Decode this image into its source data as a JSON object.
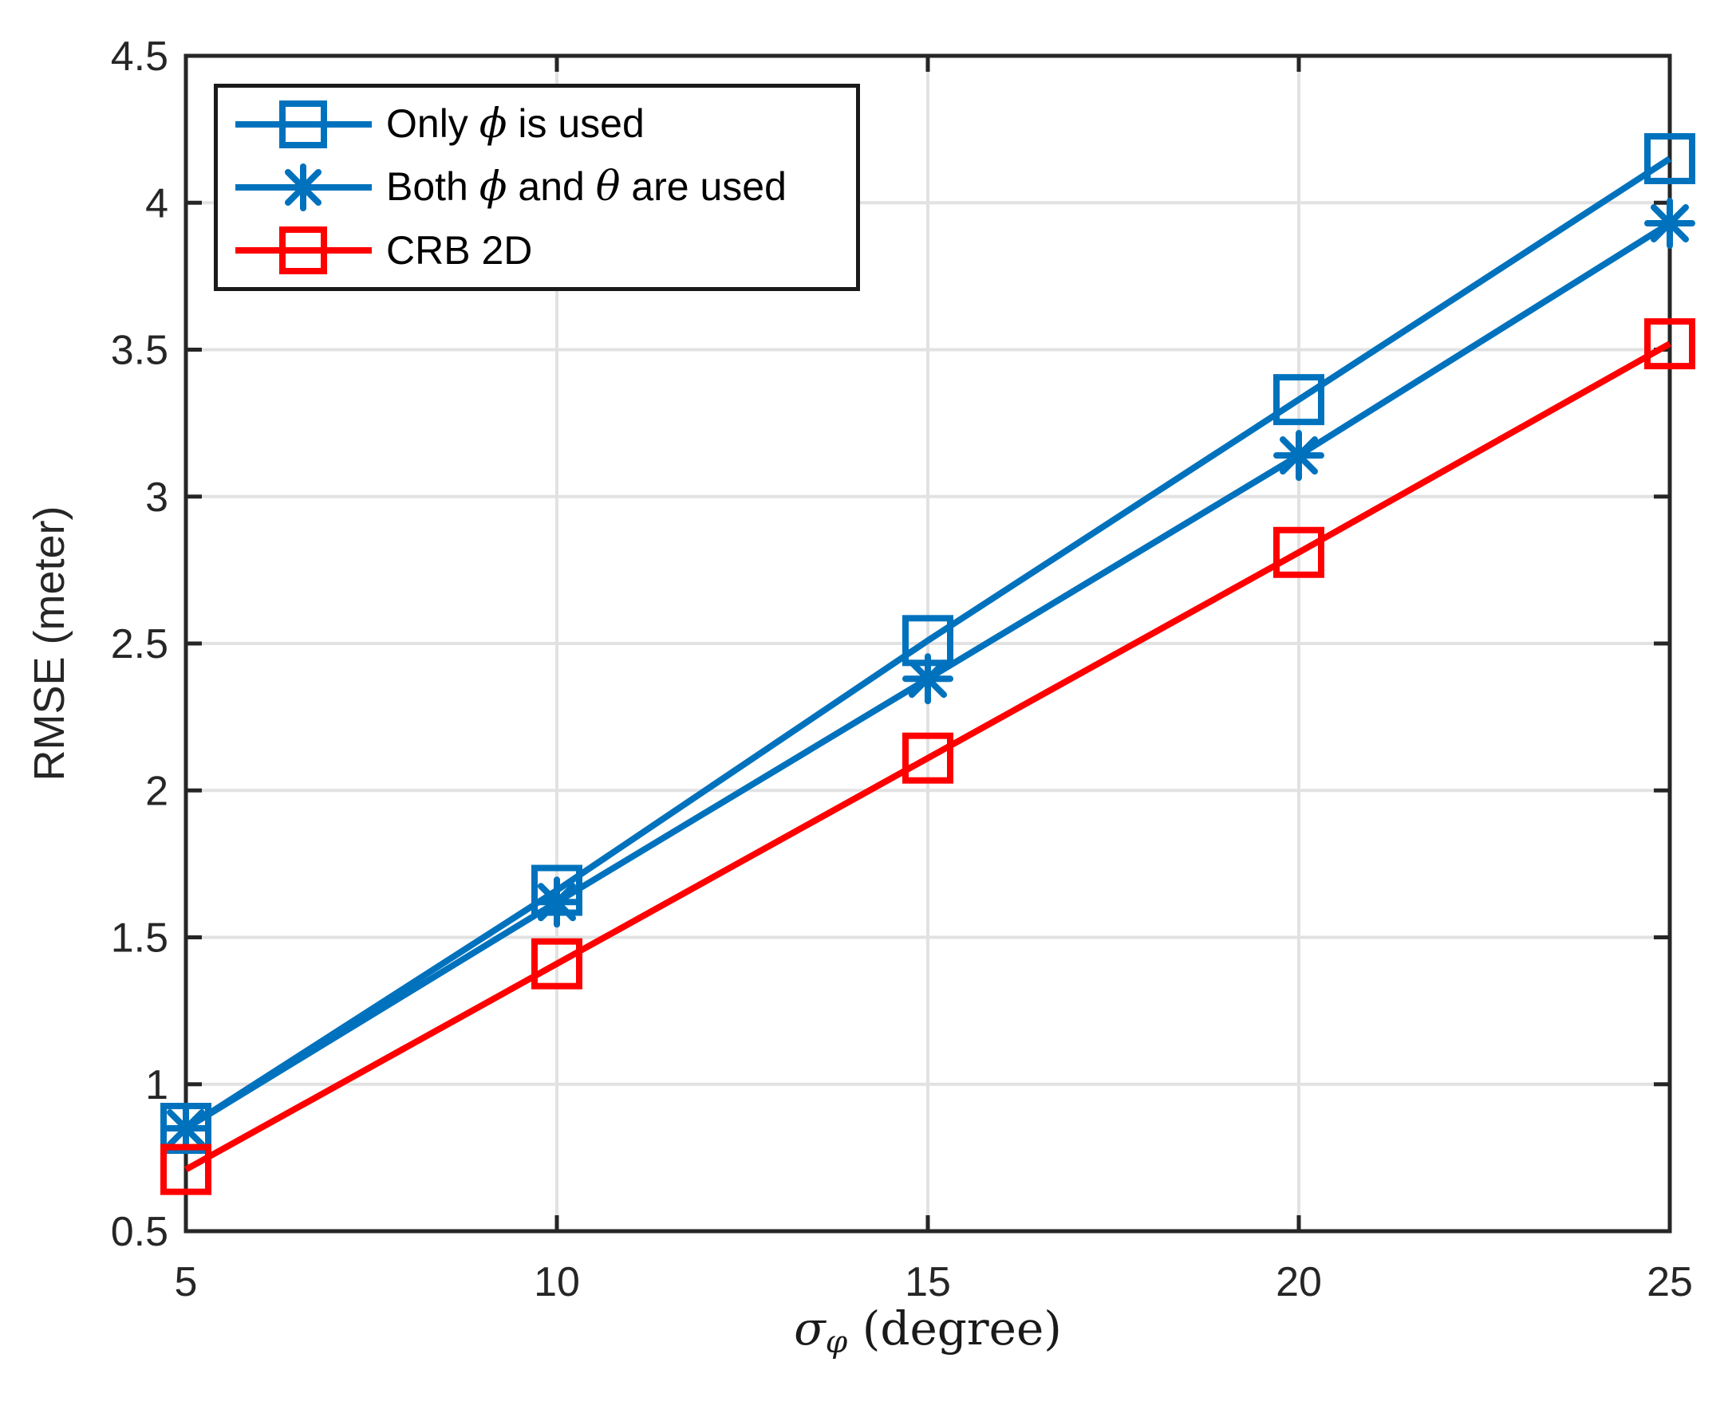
{
  "figure": {
    "background": "#FFFFFF"
  },
  "colors": {
    "axis": "#262626",
    "grid": "#E2E2E2",
    "tick_text": "#262626",
    "blue": "#0072BD",
    "red": "#FF0000"
  },
  "chart_data": {
    "type": "line",
    "title": "",
    "xlabel": {
      "symbol": "σ",
      "subscript": "φ",
      "unit": " (degree)"
    },
    "ylabel": "RMSE (meter)",
    "x": [
      5,
      10,
      15,
      20,
      25
    ],
    "xticks": [
      5,
      10,
      15,
      20,
      25
    ],
    "yticks": [
      0.5,
      1,
      1.5,
      2,
      2.5,
      3,
      3.5,
      4,
      4.5
    ],
    "xlim": [
      5,
      25
    ],
    "ylim": [
      0.5,
      4.5
    ],
    "grid": true,
    "legend_position": "top-left",
    "series": [
      {
        "name": "Only ϕ is used",
        "color": "#0072BD",
        "marker": "square",
        "values": [
          0.85,
          1.66,
          2.51,
          3.33,
          4.15
        ]
      },
      {
        "name": "Both ϕ and θ are used",
        "color": "#0072BD",
        "marker": "asterisk",
        "values": [
          0.85,
          1.62,
          2.38,
          3.14,
          3.93
        ]
      },
      {
        "name": "CRB 2D",
        "color": "#FF0000",
        "marker": "square",
        "values": [
          0.71,
          1.41,
          2.11,
          2.81,
          3.52
        ]
      }
    ]
  },
  "legend": {
    "items": [
      {
        "marker": "square",
        "color": "#0072BD",
        "parts": [
          {
            "text": "Only ",
            "math": false
          },
          {
            "text": "ϕ",
            "math": true
          },
          {
            "text": " is used",
            "math": false
          }
        ]
      },
      {
        "marker": "asterisk",
        "color": "#0072BD",
        "parts": [
          {
            "text": "Both ",
            "math": false
          },
          {
            "text": "ϕ",
            "math": true
          },
          {
            "text": " and ",
            "math": false
          },
          {
            "text": "θ",
            "math": true
          },
          {
            "text": " are used",
            "math": false
          }
        ]
      },
      {
        "marker": "square",
        "color": "#FF0000",
        "parts": [
          {
            "text": "CRB 2D",
            "math": false
          }
        ]
      }
    ]
  }
}
